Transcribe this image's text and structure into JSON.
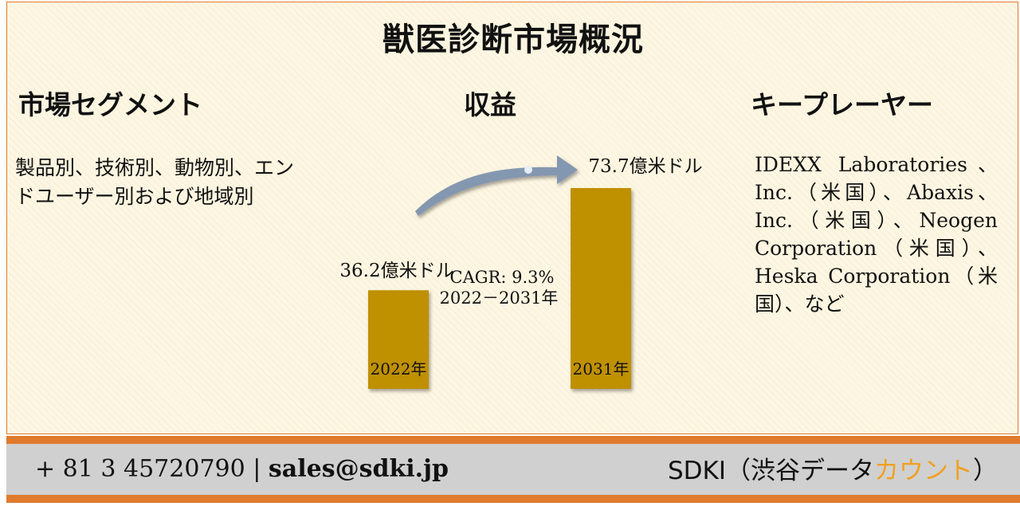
{
  "title": "獣医診断市場概況",
  "segment": {
    "heading": "市場セグメント",
    "text": "製品別、技術別、動物別、エンドユーザー別および地域別"
  },
  "revenue": {
    "heading": "収益",
    "cagr_label": "CAGR: 9.3%",
    "period_label": "2022－2031年"
  },
  "key_players": {
    "heading": "キープレーヤー",
    "text": "IDEXX Laboratories、Inc.（米国）、Abaxis、Inc.（米国）、Neogen Corporation（米国）、Heska Corporation（米国）、など"
  },
  "chart_data": {
    "type": "bar",
    "categories": [
      "2022年",
      "2031年"
    ],
    "values": [
      36.2,
      73.7
    ],
    "data_labels": [
      "36.2億米ドル",
      "73.7億米ドル"
    ],
    "unit": "億米ドル",
    "bar_color": "#bf9000",
    "annotation": "CAGR: 9.3% 2022－2031年"
  },
  "footer": {
    "contact_phone": "+ 81 3 45720790",
    "separator": "|",
    "contact_email": "sales@sdki.jp",
    "brand_main": "SDKI（渋谷データ",
    "brand_accent": "カウント",
    "brand_close": "）"
  },
  "colors": {
    "accent_orange": "#e07a2c",
    "bar": "#bf9000",
    "arrow": "#8497b0",
    "brand_accent": "#f0a020"
  }
}
